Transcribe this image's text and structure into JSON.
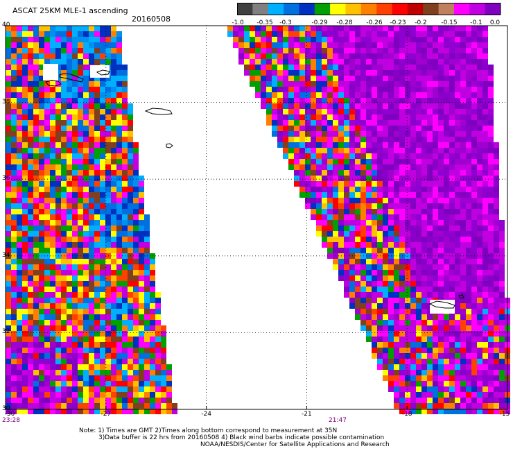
{
  "header": {
    "title": "ASCAT 25KM MLE-1 ascending",
    "date": "20160508"
  },
  "colorbar": {
    "colors": [
      "#404040",
      "#808080",
      "#00b0ff",
      "#0070e0",
      "#0030c0",
      "#00a000",
      "#ffff00",
      "#ffc000",
      "#ff8000",
      "#ff4000",
      "#ff0000",
      "#c00000",
      "#804020",
      "#c08060",
      "#ff00ff",
      "#c000e0",
      "#8000c0"
    ],
    "tick_labels": [
      "-1.0",
      "-0.35",
      "-0.3",
      "-0.29",
      "-0.28",
      "-0.26",
      "-0.23",
      "-0.2",
      "-0.15",
      "-0.1",
      "0.0"
    ]
  },
  "axes": {
    "lat_labels": [
      "40",
      "38",
      "36",
      "34",
      "32",
      "30"
    ],
    "lon_labels": [
      "-30",
      "-27",
      "-24",
      "-21",
      "-18",
      "-15"
    ],
    "times": [
      "23:28",
      "21:47"
    ]
  },
  "notes": [
    "Note: 1) Times are GMT 2)Times along bottom correspond to measurement at 35N",
    "3)Data buffer is 22 hrs from 20160508 4) Black wind barbs indicate possible contamination",
    "NOAA/NESDIS/Center for Satellite Applications and Research"
  ]
}
